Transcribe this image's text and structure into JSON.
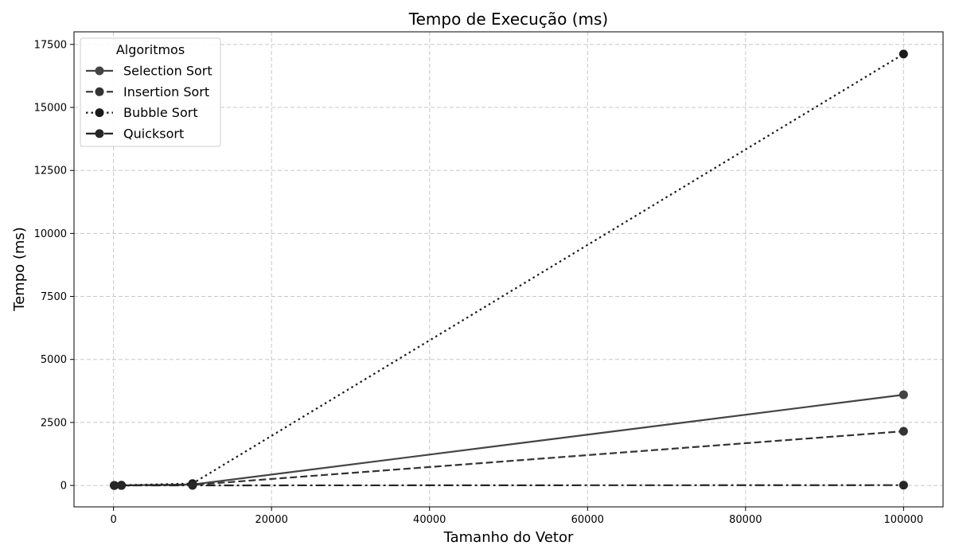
{
  "chart_data": {
    "type": "line",
    "title": "Tempo de Execução (ms)",
    "xlabel": "Tamanho do Vetor",
    "ylabel": "Tempo (ms)",
    "xlim": [
      -5000,
      105000
    ],
    "ylim": [
      -850,
      18000
    ],
    "xticks": [
      0,
      20000,
      40000,
      60000,
      80000,
      100000
    ],
    "yticks": [
      0,
      2500,
      5000,
      7500,
      10000,
      12500,
      15000,
      17500
    ],
    "grid": true,
    "legend": {
      "title": "Algoritmos",
      "placement": "top-left"
    },
    "x": [
      100,
      1000,
      10000,
      100000
    ],
    "series": [
      {
        "name": "Selection Sort",
        "values": [
          0.1,
          4,
          36,
          3600
        ],
        "color": "#444444",
        "dash": "solid"
      },
      {
        "name": "Insertion Sort",
        "values": [
          0.1,
          2,
          22,
          2150
        ],
        "color": "#333333",
        "dash": "dashed"
      },
      {
        "name": "Bubble Sort",
        "values": [
          0.2,
          10,
          75,
          17120
        ],
        "color": "#1a1a1a",
        "dash": "dotted"
      },
      {
        "name": "Quicksort",
        "values": [
          0,
          0.1,
          1,
          12
        ],
        "color": "#262626",
        "dash": "dashdot"
      }
    ]
  }
}
